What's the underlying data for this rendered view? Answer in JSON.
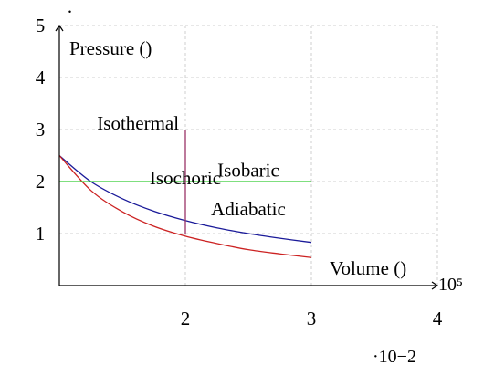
{
  "chart_data": {
    "type": "line",
    "title": "",
    "xlabel": "Volume ()",
    "ylabel": "Pressure ()",
    "x_multiplier": "·10−2",
    "y_multiplier": "10⁵",
    "top_mark": "·",
    "xlim": [
      1,
      4
    ],
    "ylim": [
      0,
      5
    ],
    "x_ticks": [
      "2",
      "3",
      "4"
    ],
    "y_ticks": [
      "1",
      "2",
      "3",
      "4",
      "5"
    ],
    "grid": true,
    "series": [
      {
        "color": "#1a1a99",
        "x": [
          1,
          1.25,
          1.5,
          1.75,
          2,
          2.25,
          2.5,
          2.75,
          3
        ],
        "y": [
          2.5,
          2.0,
          1.67,
          1.43,
          1.25,
          1.11,
          1.0,
          0.91,
          0.83
        ]
      },
      {
        "color": "#cc2222",
        "x": [
          1,
          1.25,
          1.5,
          1.75,
          2,
          2.25,
          2.5,
          2.75,
          3
        ],
        "y": [
          2.5,
          1.83,
          1.42,
          1.14,
          0.95,
          0.81,
          0.69,
          0.61,
          0.54
        ]
      },
      {
        "color": "#33cc33",
        "x": [
          1,
          3
        ],
        "y": [
          2.0,
          2.0
        ]
      },
      {
        "color": "#993366",
        "x": [
          2,
          2
        ],
        "y": [
          1.0,
          3.0
        ]
      }
    ],
    "annotations": [
      {
        "text": "Isothermal",
        "x": 1.95,
        "y": 3.0
      },
      {
        "text": "Isobaric",
        "x": 2.5,
        "y": 2.1
      },
      {
        "text": "Isochoric",
        "x": 2.0,
        "y": 1.95
      },
      {
        "text": "Adiabatic",
        "x": 2.5,
        "y": 1.35
      }
    ]
  }
}
